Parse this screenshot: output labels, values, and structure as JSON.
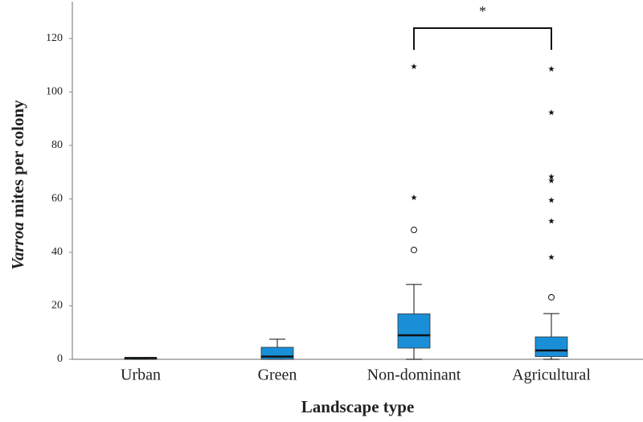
{
  "chart_data": {
    "type": "box",
    "y_label": [
      "Varroa",
      "mites per colony"
    ],
    "x_label": "Landscape type",
    "categories": [
      "Urban",
      "Green",
      "Non-dominant",
      "Agricultural"
    ],
    "color": "#1a8fd8",
    "boxes": [
      {
        "min": 0,
        "q1": 0,
        "median": 0.5,
        "q3": 0.5,
        "max": 0.5,
        "outliers": [],
        "extremes": []
      },
      {
        "min": 0,
        "q1": 0,
        "median": 1,
        "q3": 4.5,
        "max": 7.5,
        "outliers": [],
        "extremes": []
      },
      {
        "min": 0,
        "q1": 4.2,
        "median": 9,
        "q3": 17,
        "max": 28,
        "outliers": [
          48.4,
          40.9
        ],
        "extremes": [
          60.5,
          109.5
        ]
      },
      {
        "min": 0,
        "q1": 1,
        "median": 3.3,
        "q3": 8.4,
        "max": 17.1,
        "outliers": [
          23.2
        ],
        "extremes": [
          38.2,
          51.7,
          59.5,
          66.8,
          68.3,
          92.3,
          108.6
        ]
      }
    ],
    "significance": {
      "pair": [
        "Non-dominant",
        "Agricultural"
      ],
      "label": "*"
    },
    "ylim": [
      0,
      132
    ],
    "yticks": [
      0,
      20,
      40,
      60,
      80,
      100,
      120
    ],
    "grid": false
  }
}
